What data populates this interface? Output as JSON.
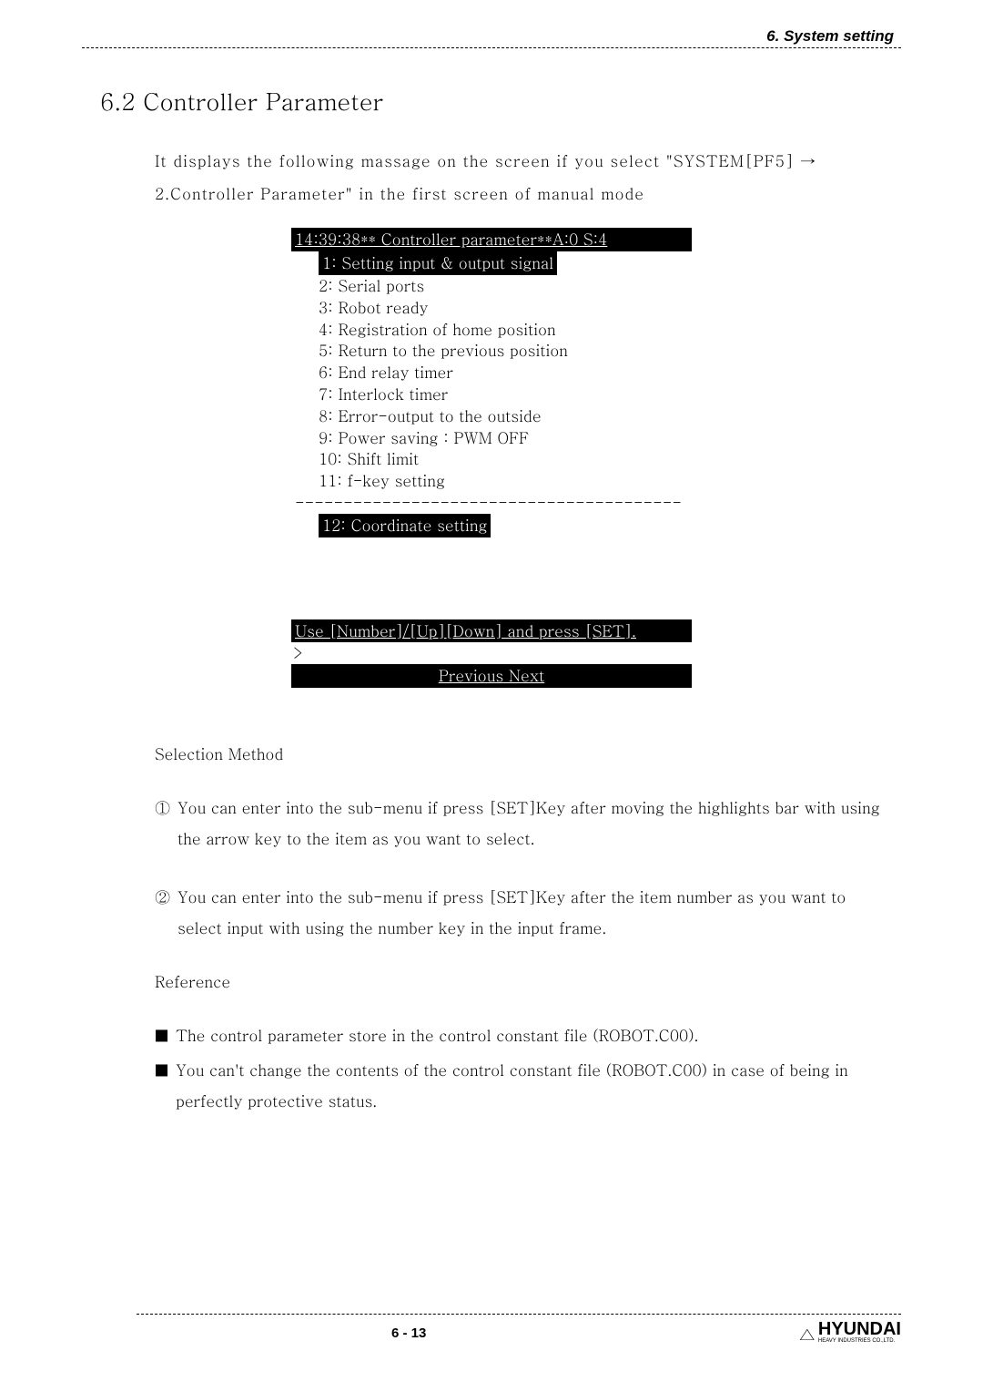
{
  "header": {
    "title": "6. System setting"
  },
  "section": {
    "title": "6.2 Controller Parameter",
    "intro": "It displays the following massage on the screen if you select \"SYSTEM[PF5] → 2.Controller Parameter\" in the first screen of manual mode"
  },
  "screen": {
    "header": "14:39:38** Controller parameter**A:0 S:4",
    "items": [
      {
        "num": "1:",
        "text": "Setting input & output signal",
        "highlighted": true
      },
      {
        "num": "2:",
        "text": "Serial ports",
        "highlighted": false
      },
      {
        "num": "3:",
        "text": "Robot ready",
        "highlighted": false
      },
      {
        "num": "4:",
        "text": "Registration of home position",
        "highlighted": false
      },
      {
        "num": "5:",
        "text": "Return to the previous position",
        "highlighted": false
      },
      {
        "num": "6:",
        "text": "End relay timer",
        "highlighted": false
      },
      {
        "num": "7:",
        "text": "Interlock timer",
        "highlighted": false
      },
      {
        "num": "8:",
        "text": "Error-output to the outside",
        "highlighted": false
      },
      {
        "num": "9:",
        "text": "Power saving : PWM OFF",
        "highlighted": false
      },
      {
        "num": "10:",
        "text": "Shift limit",
        "highlighted": false
      },
      {
        "num": "11:",
        "text": "f-key setting",
        "highlighted": false
      }
    ],
    "divider": "----------------------------------------",
    "afterDivider": [
      {
        "num": "12:",
        "text": "Coordinate setting",
        "highlighted": true
      }
    ],
    "footerLine": "Use [Number]/[Up][Down] and press [SET].",
    "prompt": ">",
    "nav": "Previous  Next"
  },
  "selection": {
    "title": "Selection Method",
    "items": [
      {
        "num": "①",
        "text": "You can enter into the sub-menu if press [SET]Key after moving the highlights bar with using the arrow key to the item as you want to select."
      },
      {
        "num": "②",
        "text": "You can enter into the sub-menu if press [SET]Key after the item number as you want to select input with using the number key in the input frame."
      }
    ]
  },
  "reference": {
    "title": "Reference",
    "items": [
      "The control parameter store in the control constant file (ROBOT.C00).",
      "You can't change the contents of the control constant file (ROBOT.C00) in case of being in perfectly protective status."
    ]
  },
  "footer": {
    "pageNum": "6 - 13",
    "logoMain": "HYUNDAI",
    "logoSub": "HEAVY INDUSTRIES CO.,LTD."
  }
}
